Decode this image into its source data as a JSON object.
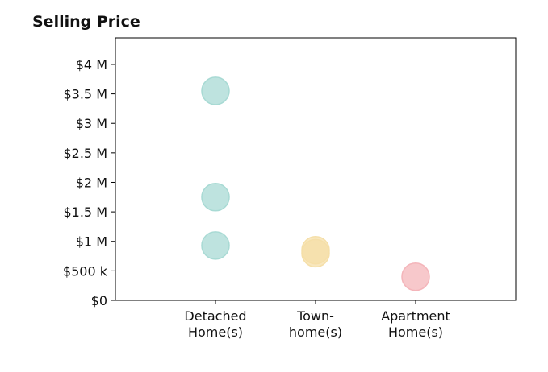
{
  "chart_data": {
    "type": "scatter",
    "title": "Selling Price",
    "xlabel": "",
    "ylabel": "",
    "categories": [
      [
        "Detached",
        "Home(s)"
      ],
      [
        "Town-",
        "home(s)"
      ],
      [
        "Apartment",
        "Home(s)"
      ]
    ],
    "y_ticks": [
      {
        "value": 0,
        "label": "$0"
      },
      {
        "value": 500000,
        "label": "$500 k"
      },
      {
        "value": 1000000,
        "label": "$1 M"
      },
      {
        "value": 1500000,
        "label": "$1.5 M"
      },
      {
        "value": 2000000,
        "label": "$2 M"
      },
      {
        "value": 2500000,
        "label": "$2.5 M"
      },
      {
        "value": 3000000,
        "label": "$3 M"
      },
      {
        "value": 3500000,
        "label": "$3.5 M"
      },
      {
        "value": 4000000,
        "label": "$4 M"
      }
    ],
    "ylim": [
      0,
      4450000
    ],
    "xlim": [
      -1,
      3
    ],
    "grid": false,
    "points": [
      {
        "category": 0,
        "y": 3550000,
        "color": "#a8dad4"
      },
      {
        "category": 0,
        "y": 1750000,
        "color": "#a8dad4"
      },
      {
        "category": 0,
        "y": 930000,
        "color": "#a8dad4"
      },
      {
        "category": 1,
        "y": 850000,
        "color": "#f5dfa8"
      },
      {
        "category": 1,
        "y": 800000,
        "color": "#f5dfa8"
      },
      {
        "category": 2,
        "y": 400000,
        "color": "#f4b5ba"
      }
    ]
  }
}
